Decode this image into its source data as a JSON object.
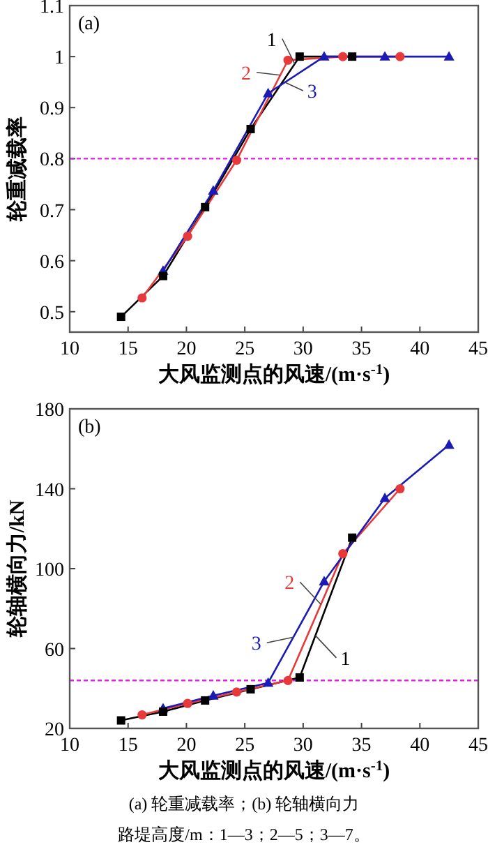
{
  "chart_data": [
    {
      "type": "line",
      "title": "(a)",
      "xlabel": "大风监测点的风速/(m·s$^{-1}$)",
      "ylabel": "轮重减载率",
      "xlim": [
        10,
        45
      ],
      "xticks": [
        10,
        15,
        20,
        25,
        30,
        35,
        40,
        45
      ],
      "ylim": [
        0.46,
        1.1
      ],
      "yticks": [
        0.5,
        0.6,
        0.7,
        0.8,
        0.9,
        1.0,
        1.1
      ],
      "grid": false,
      "series": [
        {
          "name": "1",
          "color": "#000000",
          "marker": "square",
          "x": [
            14.4,
            18,
            21.6,
            25.5,
            29.7,
            34.2
          ],
          "values": [
            0.49,
            0.57,
            0.705,
            0.858,
            1.0,
            1.0
          ]
        },
        {
          "name": "2",
          "color": "#e8393a",
          "marker": "circle",
          "x": [
            16.2,
            20.1,
            24.3,
            28.7,
            33.4,
            38.3
          ],
          "values": [
            0.527,
            0.648,
            0.797,
            0.993,
            1.0,
            1.0
          ]
        },
        {
          "name": "3",
          "color": "#1a1ab4",
          "marker": "triangle",
          "x": [
            18,
            22.3,
            27,
            31.8,
            37,
            42.5
          ],
          "values": [
            0.58,
            0.737,
            0.928,
            1.0,
            1.0,
            1.0
          ]
        }
      ],
      "ref_lines": [
        {
          "axis": "y",
          "value": 0.8,
          "color": "#e020e0",
          "line_style": "dashed"
        }
      ]
    },
    {
      "type": "line",
      "title": "(b)",
      "xlabel": "大风监测点的风速/(m·s$^{-1}$)",
      "ylabel": "轮轴横向力/kN",
      "xlim": [
        10,
        45
      ],
      "xticks": [
        10,
        15,
        20,
        25,
        30,
        35,
        40,
        45
      ],
      "ylim": [
        20,
        180
      ],
      "yticks": [
        20,
        60,
        100,
        140,
        180
      ],
      "grid": false,
      "series": [
        {
          "name": "1",
          "color": "#000000",
          "marker": "square",
          "x": [
            14.4,
            18,
            21.6,
            25.5,
            29.7,
            34.2
          ],
          "values": [
            24,
            28.4,
            34,
            39.6,
            45.5,
            115.5
          ]
        },
        {
          "name": "2",
          "color": "#e8393a",
          "marker": "circle",
          "x": [
            16.2,
            20.1,
            24.3,
            28.7,
            33.4,
            38.3
          ],
          "values": [
            26.8,
            32.5,
            38.2,
            44,
            107.5,
            140
          ]
        },
        {
          "name": "3",
          "color": "#1a1ab4",
          "marker": "triangle",
          "x": [
            18,
            22.3,
            27,
            31.8,
            37,
            42.5
          ],
          "values": [
            30,
            36.4,
            42.8,
            93.6,
            135.3,
            162
          ]
        }
      ],
      "ref_lines": [
        {
          "axis": "y",
          "value": 44,
          "color": "#e020e0",
          "line_style": "dashed"
        }
      ],
      "annotations": [
        "(a) 轮重减载率；(b) 轮轴横向力",
        "路堤高度/m：1—3；2—5；3—7。"
      ]
    }
  ]
}
